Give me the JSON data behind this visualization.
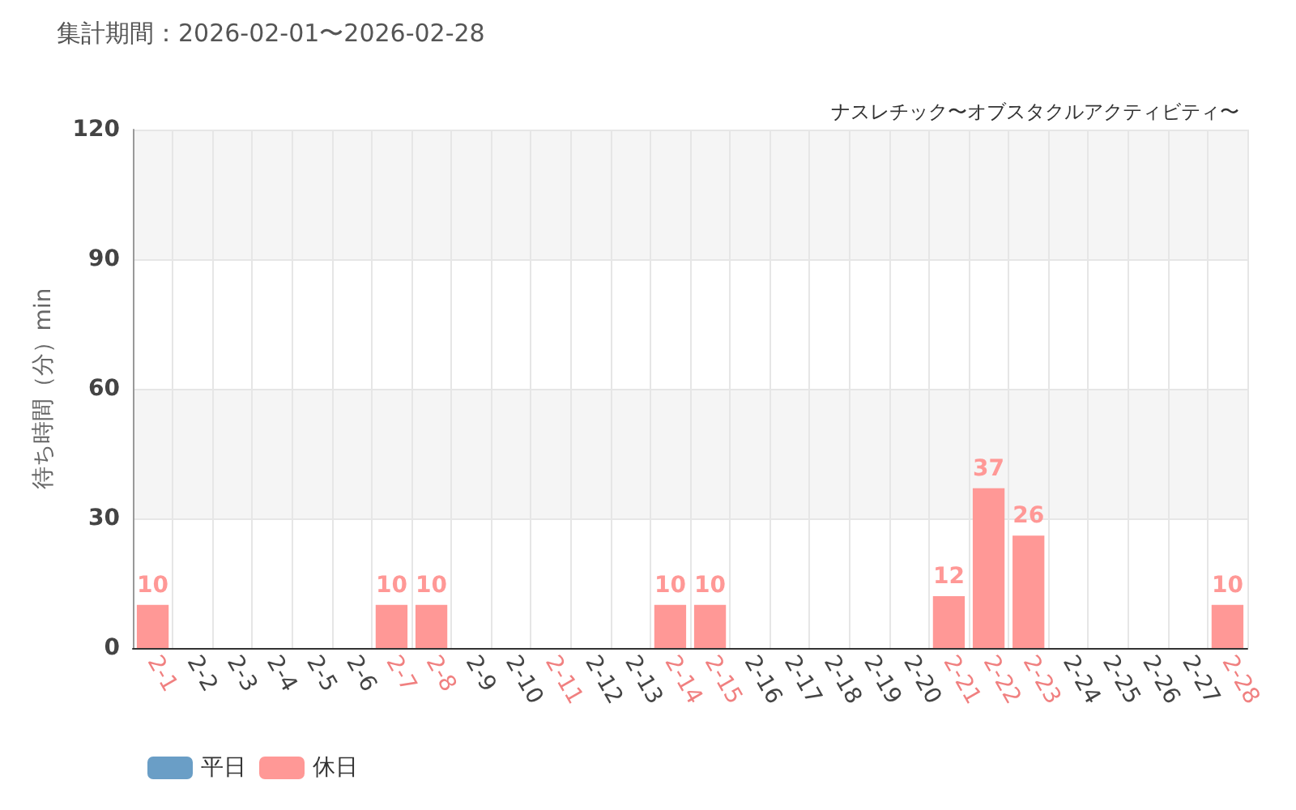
{
  "chart_data": {
    "type": "bar",
    "title": "集計期間：2026-02-01〜2026-02-28",
    "subtitle": "ナスレチック〜オブスタクルアクティビティ〜",
    "ylabel": "待ち時間（分）min",
    "categories": [
      "2-1",
      "2-2",
      "2-3",
      "2-4",
      "2-5",
      "2-6",
      "2-7",
      "2-8",
      "2-9",
      "2-10",
      "2-11",
      "2-12",
      "2-13",
      "2-14",
      "2-15",
      "2-16",
      "2-17",
      "2-18",
      "2-19",
      "2-20",
      "2-21",
      "2-22",
      "2-23",
      "2-24",
      "2-25",
      "2-26",
      "2-27",
      "2-28"
    ],
    "series": [
      {
        "name": "平日",
        "color": "#6a9ec6",
        "values": [
          null,
          null,
          null,
          null,
          null,
          null,
          null,
          null,
          null,
          null,
          null,
          null,
          null,
          null,
          null,
          null,
          null,
          null,
          null,
          null,
          null,
          null,
          null,
          null,
          null,
          null,
          null,
          null
        ]
      },
      {
        "name": "休日",
        "color": "#ff9896",
        "values": [
          10,
          null,
          null,
          null,
          null,
          null,
          10,
          10,
          null,
          null,
          0,
          null,
          null,
          10,
          10,
          null,
          null,
          null,
          null,
          null,
          12,
          37,
          26,
          null,
          null,
          null,
          null,
          10
        ],
        "value_labels": [
          "10",
          null,
          null,
          null,
          null,
          null,
          "10",
          "10",
          null,
          null,
          null,
          null,
          null,
          "10",
          "10",
          null,
          null,
          null,
          null,
          null,
          "12",
          "37",
          "26",
          null,
          null,
          null,
          null,
          "10"
        ]
      }
    ],
    "ylim": [
      0,
      120
    ],
    "yticks": [
      0,
      30,
      60,
      90,
      120
    ],
    "grid": true,
    "legend": "bottom left"
  }
}
